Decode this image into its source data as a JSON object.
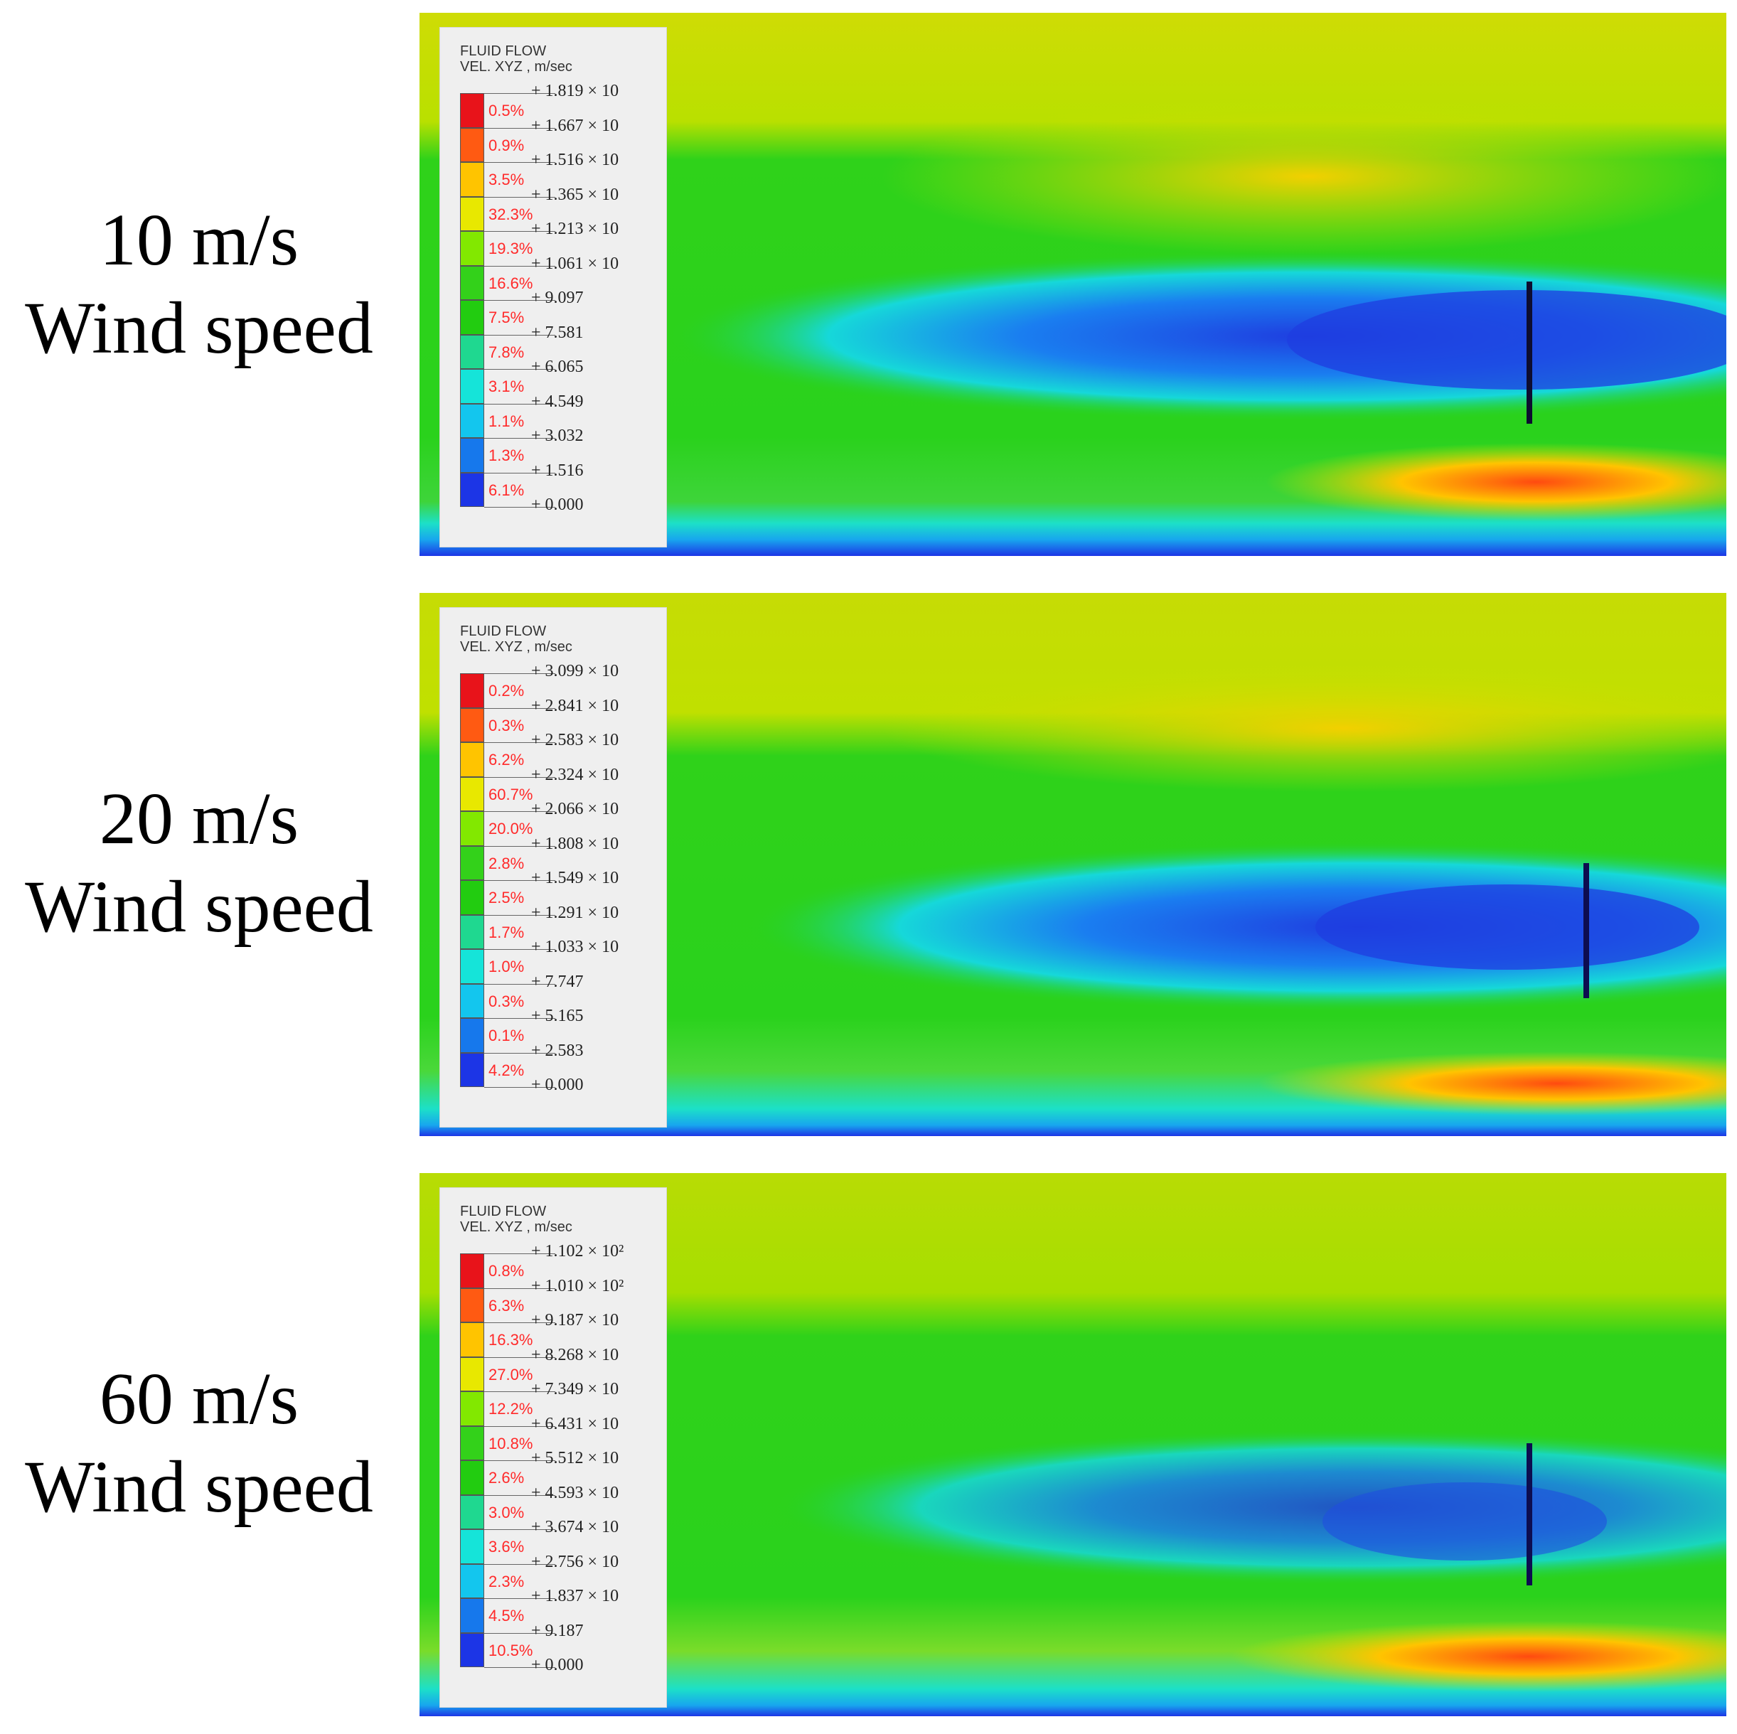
{
  "colors": {
    "scale": [
      "#e8131a",
      "#ff5a12",
      "#ffc400",
      "#e8e800",
      "#82e800",
      "#33d11a",
      "#22cc10",
      "#1fd890",
      "#15e4d9",
      "#13c6ee",
      "#1678ec",
      "#1c35e6"
    ],
    "field_top": "#d3dd05",
    "field_mid": "#25d11a",
    "wake": "#1f4fe0",
    "ground": "#1c35e6"
  },
  "panels": [
    {
      "label_line1": "10 m/s",
      "label_line2": "Wind speed",
      "legend_title1": "FLUID FLOW",
      "legend_title2": "VEL. XYZ , m/sec",
      "ticks": [
        "+ 1.819 × 10",
        "+ 1.667 × 10",
        "+ 1.516 × 10",
        "+ 1.365 × 10",
        "+ 1.213 × 10",
        "+ 1.061 × 10",
        "+ 9.097",
        "+ 7.581",
        "+ 6.065",
        "+ 4.549",
        "+ 3.032",
        "+ 1.516",
        "+ 0.000"
      ],
      "percents": [
        "0.5%",
        "0.9%",
        "3.5%",
        "32.3%",
        "19.3%",
        "16.6%",
        "7.5%",
        "7.8%",
        "3.1%",
        "1.1%",
        "1.3%",
        "6.1%"
      ]
    },
    {
      "label_line1": "20 m/s",
      "label_line2": "Wind speed",
      "legend_title1": "FLUID FLOW",
      "legend_title2": "VEL. XYZ , m/sec",
      "ticks": [
        "+ 3.099 × 10",
        "+ 2.841 × 10",
        "+ 2.583 × 10",
        "+ 2.324 × 10",
        "+ 2.066 × 10",
        "+ 1.808 × 10",
        "+ 1.549 × 10",
        "+ 1.291 × 10",
        "+ 1.033 × 10",
        "+ 7.747",
        "+ 5.165",
        "+ 2.583",
        "+ 0.000"
      ],
      "percents": [
        "0.2%",
        "0.3%",
        "6.2%",
        "60.7%",
        "20.0%",
        "2.8%",
        "2.5%",
        "1.7%",
        "1.0%",
        "0.3%",
        "0.1%",
        "4.2%"
      ]
    },
    {
      "label_line1": "60 m/s",
      "label_line2": "Wind speed",
      "legend_title1": "FLUID FLOW",
      "legend_title2": "VEL. XYZ , m/sec",
      "ticks": [
        "+ 1.102 × 10²",
        "+ 1.010 × 10²",
        "+ 9.187 × 10",
        "+ 8.268 × 10",
        "+ 7.349 × 10",
        "+ 6.431 × 10",
        "+ 5.512 × 10",
        "+ 4.593 × 10",
        "+ 3.674 × 10",
        "+ 2.756 × 10",
        "+ 1.837 × 10",
        "+ 9.187",
        "+ 0.000"
      ],
      "percents": [
        "0.8%",
        "6.3%",
        "16.3%",
        "27.0%",
        "12.2%",
        "10.8%",
        "2.6%",
        "3.0%",
        "3.6%",
        "2.3%",
        "4.5%",
        "10.5%"
      ]
    }
  ]
}
